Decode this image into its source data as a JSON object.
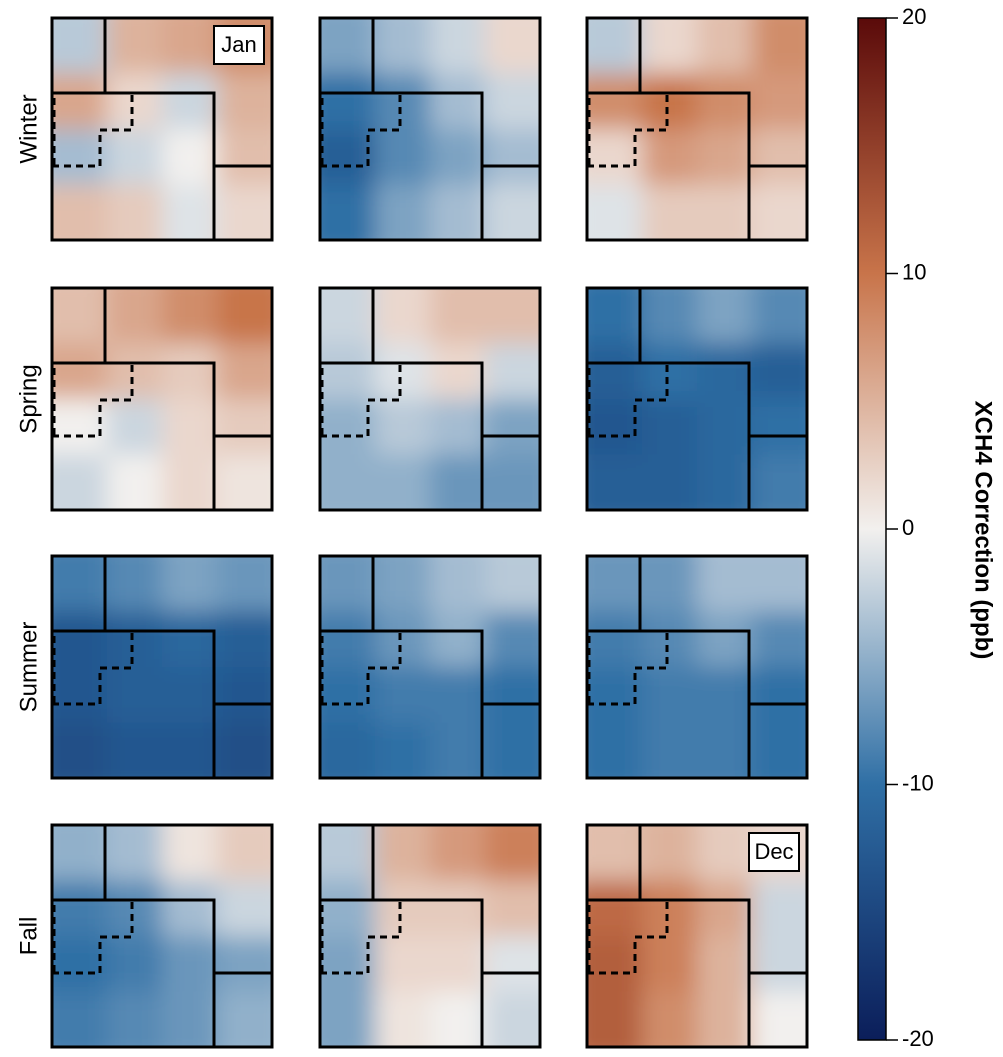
{
  "chart_data": {
    "type": "heatmap-panels",
    "colorbar": {
      "label": "XCH4 Correction (ppb)",
      "lim": [
        -20,
        20
      ],
      "ticks": [
        -20,
        -10,
        0,
        10,
        20
      ],
      "colors": [
        "#0b1e5a",
        "#2f6fa5",
        "#f2f0ee",
        "#c8744a",
        "#5a0a0a"
      ]
    },
    "rows": [
      {
        "label": "Winter",
        "panels": [
          {
            "label": "Jan",
            "values": [
              [
                -3,
                5,
                6,
                8
              ],
              [
                6,
                2,
                -2,
                5
              ],
              [
                -4,
                -2,
                0,
                4
              ],
              [
                4,
                3,
                -1,
                2
              ]
            ]
          },
          {
            "values": [
              [
                -6,
                -4,
                -2,
                2
              ],
              [
                -10,
                -8,
                -4,
                -2
              ],
              [
                -12,
                -8,
                -6,
                -4
              ],
              [
                -10,
                -6,
                -4,
                -2
              ]
            ]
          },
          {
            "values": [
              [
                -3,
                2,
                4,
                8
              ],
              [
                8,
                10,
                8,
                7
              ],
              [
                2,
                7,
                6,
                4
              ],
              [
                -1,
                3,
                3,
                2
              ]
            ]
          }
        ]
      },
      {
        "label": "Spring",
        "panels": [
          {
            "values": [
              [
                4,
                6,
                8,
                10
              ],
              [
                6,
                4,
                3,
                6
              ],
              [
                0,
                -2,
                2,
                3
              ],
              [
                -2,
                0,
                2,
                1
              ]
            ]
          },
          {
            "values": [
              [
                -2,
                2,
                4,
                4
              ],
              [
                -3,
                -1,
                2,
                -2
              ],
              [
                -5,
                -3,
                -4,
                -6
              ],
              [
                -5,
                -5,
                -7,
                -7
              ]
            ]
          },
          {
            "values": [
              [
                -10,
                -8,
                -6,
                -8
              ],
              [
                -12,
                -10,
                -11,
                -12
              ],
              [
                -13,
                -12,
                -11,
                -10
              ],
              [
                -12,
                -12,
                -11,
                -9
              ]
            ]
          }
        ]
      },
      {
        "label": "Summer",
        "panels": [
          {
            "values": [
              [
                -9,
                -8,
                -6,
                -7
              ],
              [
                -13,
                -12,
                -11,
                -12
              ],
              [
                -13,
                -12,
                -12,
                -13
              ],
              [
                -14,
                -13,
                -13,
                -14
              ]
            ]
          },
          {
            "values": [
              [
                -7,
                -6,
                -4,
                -3
              ],
              [
                -9,
                -7,
                -5,
                -8
              ],
              [
                -10,
                -9,
                -9,
                -10
              ],
              [
                -11,
                -10,
                -9,
                -10
              ]
            ]
          },
          {
            "values": [
              [
                -7,
                -7,
                -4,
                -4
              ],
              [
                -9,
                -8,
                -6,
                -8
              ],
              [
                -10,
                -9,
                -9,
                -10
              ],
              [
                -10,
                -9,
                -9,
                -10
              ]
            ]
          }
        ]
      },
      {
        "label": "Fall",
        "panels": [
          {
            "values": [
              [
                -5,
                -4,
                1,
                3
              ],
              [
                -9,
                -8,
                -4,
                -2
              ],
              [
                -10,
                -9,
                -7,
                -6
              ],
              [
                -9,
                -8,
                -7,
                -5
              ]
            ]
          },
          {
            "values": [
              [
                -3,
                5,
                7,
                9
              ],
              [
                -5,
                3,
                3,
                4
              ],
              [
                -6,
                2,
                2,
                -1
              ],
              [
                -6,
                1,
                0,
                -2
              ]
            ]
          },
          {
            "label": "Dec",
            "values": [
              [
                4,
                5,
                3,
                2
              ],
              [
                11,
                9,
                6,
                -2
              ],
              [
                12,
                9,
                5,
                -2
              ],
              [
                12,
                8,
                5,
                0
              ]
            ]
          }
        ]
      }
    ]
  }
}
